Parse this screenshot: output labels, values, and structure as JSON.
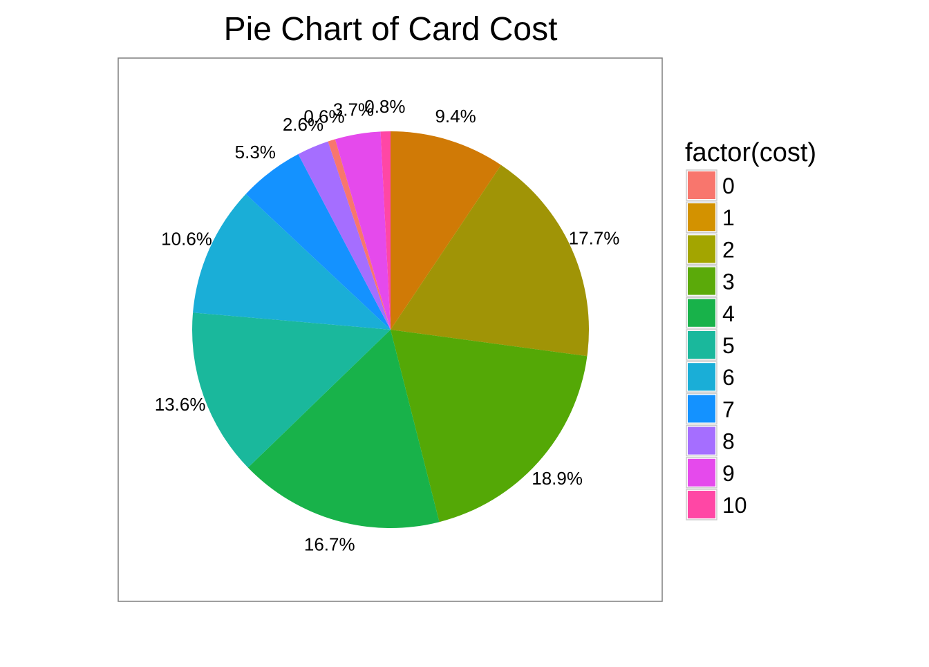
{
  "chart_data": {
    "type": "pie",
    "title": "Pie Chart of Card Cost",
    "legend": {
      "title": "factor(cost)",
      "placement": "right"
    },
    "slices": [
      {
        "label": "0",
        "value": 0.6,
        "display": "0.6%",
        "color": "#F8766D"
      },
      {
        "label": "1",
        "value": 9.4,
        "display": "9.4%",
        "color": "#D39200"
      },
      {
        "label": "2",
        "value": 17.7,
        "display": "17.7%",
        "color": "#93AA00"
      },
      {
        "label": "3",
        "value": 18.9,
        "display": "18.9%",
        "color": "#00BA38"
      },
      {
        "label": "4",
        "value": 16.7,
        "display": "16.7%",
        "color": "#00C19F"
      },
      {
        "label": "5",
        "value": 13.6,
        "display": "13.6%",
        "color": "#00B9E3"
      },
      {
        "label": "6",
        "value": 10.6,
        "display": "10.6%",
        "color": "#619CFF"
      },
      {
        "label": "7",
        "value": 5.3,
        "display": "5.3%",
        "color": "#DB72FB"
      },
      {
        "label": "8",
        "value": 2.6,
        "display": "2.6%",
        "color": "#FF61C3"
      },
      {
        "label": "9",
        "value": 3.7,
        "display": "3.7%",
        "color": "#DB72FB"
      },
      {
        "label": "10",
        "value": 0.8,
        "display": "0.8%",
        "color": "#FF61C3"
      }
    ],
    "legend_colors": [
      "#F8766D",
      "#D39200",
      "#A3A500",
      "#5BAA0A",
      "#18B24A",
      "#1AB89C",
      "#1AAED7",
      "#1492FF",
      "#A56EFF",
      "#E54AEC",
      "#FF47A5"
    ],
    "slice_colors": [
      "#F8766D",
      "#D07A06",
      "#A09406",
      "#54A806",
      "#18B24A",
      "#1AB89C",
      "#1AAED7",
      "#1492FF",
      "#A56EFF",
      "#E54AEC",
      "#FF47A5"
    ]
  }
}
